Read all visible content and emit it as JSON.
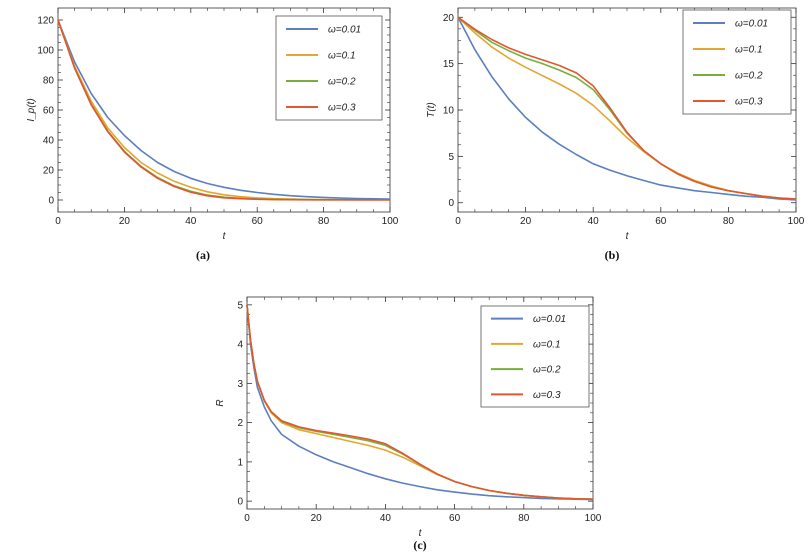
{
  "chart_data": [
    {
      "panel": "(a)",
      "type": "line",
      "xlabel": "t",
      "ylabel": "I_p(t)",
      "xlim": [
        0,
        100
      ],
      "ylim": [
        -8,
        128
      ],
      "xticks": [
        0,
        20,
        40,
        60,
        80,
        100
      ],
      "yticks": [
        0,
        20,
        40,
        60,
        80,
        100,
        120
      ],
      "legend_position": "top-right",
      "x": [
        0,
        5,
        10,
        15,
        20,
        25,
        30,
        35,
        40,
        45,
        50,
        55,
        60,
        65,
        70,
        75,
        80,
        85,
        90,
        95,
        100
      ],
      "series": [
        {
          "name": "ω=0.01",
          "color": "#5b7fbf",
          "values": [
            120,
            92,
            71,
            55,
            43,
            33,
            25,
            19,
            14.5,
            11,
            8.5,
            6.5,
            5,
            3.8,
            2.9,
            2.2,
            1.7,
            1.3,
            1.0,
            0.8,
            0.6
          ]
        },
        {
          "name": "ω=0.1",
          "color": "#e5a531",
          "values": [
            120,
            89,
            66,
            48,
            35,
            25,
            18,
            12.5,
            8.5,
            5.5,
            3.5,
            2.2,
            1.4,
            0.9,
            0.6,
            0.4,
            0.3,
            0.2,
            0.1,
            0.1,
            0.1
          ]
        },
        {
          "name": "ω=0.2",
          "color": "#7aad3a",
          "values": [
            120,
            88,
            64,
            46,
            32.5,
            22.5,
            15,
            9.5,
            5.8,
            3.3,
            1.9,
            1.1,
            0.7,
            0.4,
            0.3,
            0.2,
            0.1,
            0.1,
            0.1,
            0.1,
            0.1
          ]
        },
        {
          "name": "ω=0.3",
          "color": "#e1572f",
          "values": [
            120,
            88,
            63.5,
            45.5,
            32,
            22,
            14.5,
            9,
            5.2,
            2.8,
            1.5,
            0.9,
            0.5,
            0.3,
            0.2,
            0.1,
            0.1,
            0.1,
            0.1,
            0.1,
            0.1
          ]
        }
      ]
    },
    {
      "panel": "(b)",
      "type": "line",
      "xlabel": "t",
      "ylabel": "T(t)",
      "xlim": [
        0,
        100
      ],
      "ylim": [
        -1,
        21
      ],
      "xticks": [
        0,
        20,
        40,
        60,
        80,
        100
      ],
      "yticks": [
        0,
        5,
        10,
        15,
        20
      ],
      "legend_position": "top-right",
      "x": [
        0,
        5,
        10,
        15,
        20,
        25,
        30,
        35,
        40,
        45,
        50,
        55,
        60,
        65,
        70,
        75,
        80,
        85,
        90,
        95,
        100
      ],
      "series": [
        {
          "name": "ω=0.01",
          "color": "#5b7fbf",
          "values": [
            20,
            16.5,
            13.6,
            11.2,
            9.2,
            7.6,
            6.3,
            5.2,
            4.2,
            3.5,
            2.9,
            2.4,
            1.9,
            1.6,
            1.3,
            1.1,
            0.9,
            0.7,
            0.6,
            0.4,
            0.3
          ]
        },
        {
          "name": "ω=0.1",
          "color": "#e5a531",
          "values": [
            20,
            18.3,
            16.8,
            15.6,
            14.6,
            13.7,
            12.8,
            11.8,
            10.5,
            8.8,
            7.0,
            5.5,
            4.2,
            3.2,
            2.4,
            1.8,
            1.3,
            1.0,
            0.7,
            0.5,
            0.4
          ]
        },
        {
          "name": "ω=0.2",
          "color": "#7aad3a",
          "values": [
            20,
            18.6,
            17.3,
            16.4,
            15.6,
            15.0,
            14.3,
            13.5,
            12.2,
            10.0,
            7.5,
            5.6,
            4.2,
            3.1,
            2.3,
            1.7,
            1.3,
            1.0,
            0.7,
            0.5,
            0.4
          ]
        },
        {
          "name": "ω=0.3",
          "color": "#e1572f",
          "values": [
            20,
            18.7,
            17.6,
            16.7,
            16.0,
            15.4,
            14.8,
            14.0,
            12.6,
            10.2,
            7.6,
            5.6,
            4.2,
            3.1,
            2.3,
            1.7,
            1.3,
            1.0,
            0.7,
            0.5,
            0.4
          ]
        }
      ]
    },
    {
      "panel": "(c)",
      "type": "line",
      "xlabel": "t",
      "ylabel": "R",
      "xlim": [
        0,
        100
      ],
      "ylim": [
        -0.2,
        5.2
      ],
      "xticks": [
        0,
        20,
        40,
        60,
        80,
        100
      ],
      "yticks": [
        0,
        1,
        2,
        3,
        4,
        5
      ],
      "legend_position": "top-right",
      "x": [
        0,
        1,
        2,
        3,
        5,
        7,
        10,
        15,
        20,
        25,
        30,
        35,
        40,
        45,
        50,
        55,
        60,
        65,
        70,
        75,
        80,
        85,
        90,
        95,
        100
      ],
      "series": [
        {
          "name": "ω=0.01",
          "color": "#5b7fbf",
          "values": [
            5.0,
            4.0,
            3.4,
            2.9,
            2.4,
            2.05,
            1.7,
            1.4,
            1.18,
            1.0,
            0.85,
            0.7,
            0.57,
            0.46,
            0.37,
            0.29,
            0.23,
            0.18,
            0.14,
            0.11,
            0.09,
            0.07,
            0.06,
            0.05,
            0.04
          ]
        },
        {
          "name": "ω=0.1",
          "color": "#e5a531",
          "values": [
            5.0,
            4.1,
            3.5,
            3.05,
            2.55,
            2.25,
            2.0,
            1.82,
            1.72,
            1.62,
            1.52,
            1.42,
            1.3,
            1.12,
            0.9,
            0.68,
            0.5,
            0.37,
            0.27,
            0.2,
            0.15,
            0.11,
            0.08,
            0.06,
            0.05
          ]
        },
        {
          "name": "ω=0.2",
          "color": "#7aad3a",
          "values": [
            5.0,
            4.1,
            3.5,
            3.05,
            2.56,
            2.27,
            2.03,
            1.87,
            1.78,
            1.7,
            1.62,
            1.54,
            1.42,
            1.2,
            0.93,
            0.69,
            0.5,
            0.37,
            0.27,
            0.2,
            0.15,
            0.11,
            0.08,
            0.06,
            0.05
          ]
        },
        {
          "name": "ω=0.3",
          "color": "#e1572f",
          "values": [
            5.0,
            4.1,
            3.5,
            3.05,
            2.57,
            2.28,
            2.05,
            1.89,
            1.8,
            1.73,
            1.66,
            1.58,
            1.46,
            1.22,
            0.94,
            0.69,
            0.5,
            0.37,
            0.27,
            0.2,
            0.15,
            0.11,
            0.08,
            0.06,
            0.05
          ]
        }
      ]
    }
  ],
  "captions": [
    "(a)",
    "(b)",
    "(c)"
  ]
}
